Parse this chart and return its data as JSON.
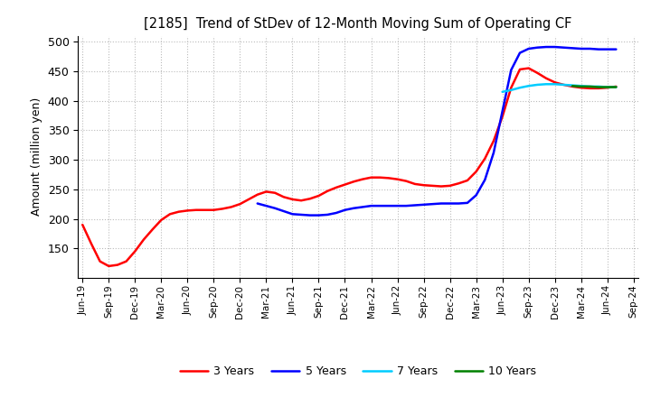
{
  "title": "[2185]  Trend of StDev of 12-Month Moving Sum of Operating CF",
  "ylabel": "Amount (million yen)",
  "ylim": [
    100,
    510
  ],
  "yticks": [
    150,
    200,
    250,
    300,
    350,
    400,
    450,
    500
  ],
  "background_color": "#ffffff",
  "grid_color": "#bbbbbb",
  "series": {
    "3years": {
      "color": "#ff0000",
      "label": "3 Years",
      "x": [
        0,
        1,
        2,
        3,
        4,
        5,
        6,
        7,
        8,
        9,
        10,
        11,
        12,
        13,
        14,
        15,
        16,
        17,
        18,
        19,
        20,
        21,
        22,
        23,
        24,
        25,
        26,
        27,
        28,
        29,
        30,
        31,
        32,
        33,
        34,
        35,
        36,
        37,
        38,
        39,
        40,
        41,
        42,
        43,
        44,
        45,
        46,
        47,
        48,
        49,
        50,
        51,
        52,
        53,
        54,
        55,
        56,
        57,
        58,
        59,
        60,
        61
      ],
      "y": [
        190,
        158,
        128,
        120,
        122,
        128,
        145,
        165,
        182,
        198,
        208,
        212,
        214,
        215,
        215,
        215,
        217,
        220,
        225,
        233,
        241,
        246,
        244,
        237,
        233,
        231,
        234,
        239,
        247,
        253,
        258,
        263,
        267,
        270,
        270,
        269,
        267,
        264,
        259,
        257,
        256,
        255,
        256,
        260,
        265,
        280,
        302,
        332,
        373,
        422,
        453,
        455,
        447,
        438,
        431,
        427,
        424,
        422,
        421,
        421,
        422,
        424
      ]
    },
    "5years": {
      "color": "#0000ff",
      "label": "5 Years",
      "x": [
        20,
        21,
        22,
        23,
        24,
        25,
        26,
        27,
        28,
        29,
        30,
        31,
        32,
        33,
        34,
        35,
        36,
        37,
        38,
        39,
        40,
        41,
        42,
        43,
        44,
        45,
        46,
        47,
        48,
        49,
        50,
        51,
        52,
        53,
        54,
        55,
        56,
        57,
        58,
        59,
        60,
        61
      ],
      "y": [
        226,
        222,
        218,
        213,
        208,
        207,
        206,
        206,
        207,
        210,
        215,
        218,
        220,
        222,
        222,
        222,
        222,
        222,
        223,
        224,
        225,
        226,
        226,
        226,
        227,
        240,
        266,
        312,
        382,
        452,
        481,
        488,
        490,
        491,
        491,
        490,
        489,
        488,
        488,
        487,
        487,
        487
      ]
    },
    "7years": {
      "color": "#00ccff",
      "label": "7 Years",
      "x": [
        48,
        49,
        50,
        51,
        52,
        53,
        54,
        55,
        56,
        57,
        58,
        59,
        60,
        61
      ],
      "y": [
        415,
        418,
        422,
        425,
        427,
        428,
        428,
        427,
        426,
        425,
        424,
        424,
        423,
        423
      ]
    },
    "10years": {
      "color": "#008000",
      "label": "10 Years",
      "x": [
        56,
        57,
        58,
        59,
        60,
        61
      ],
      "y": [
        425,
        424,
        424,
        423,
        423,
        423
      ]
    }
  },
  "xtick_labels": [
    "Jun-19",
    "Sep-19",
    "Dec-19",
    "Mar-20",
    "Jun-20",
    "Sep-20",
    "Dec-20",
    "Mar-21",
    "Jun-21",
    "Sep-21",
    "Dec-21",
    "Mar-22",
    "Jun-22",
    "Sep-22",
    "Dec-22",
    "Mar-23",
    "Jun-23",
    "Sep-23",
    "Dec-23",
    "Mar-24",
    "Jun-24",
    "Sep-24"
  ],
  "xtick_positions": [
    0,
    3,
    6,
    9,
    12,
    15,
    18,
    21,
    24,
    27,
    30,
    33,
    36,
    39,
    42,
    45,
    48,
    51,
    54,
    57,
    60,
    63
  ]
}
